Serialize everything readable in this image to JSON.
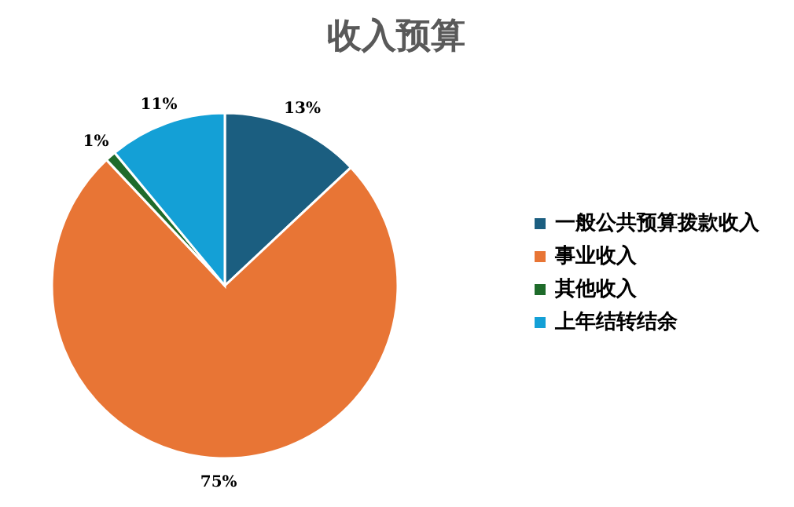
{
  "chart_data": {
    "type": "pie",
    "title": "收入预算",
    "categories": [
      "一般公共预算拨款收入",
      "事业收入",
      "其他收入",
      "上年结转结余"
    ],
    "values": [
      13,
      75,
      1,
      11
    ],
    "value_labels": [
      "13%",
      "75%",
      "1%",
      "11%"
    ],
    "colors": [
      "#1b5e80",
      "#e87535",
      "#1e6b2a",
      "#14a0d6"
    ],
    "legend": "right"
  }
}
